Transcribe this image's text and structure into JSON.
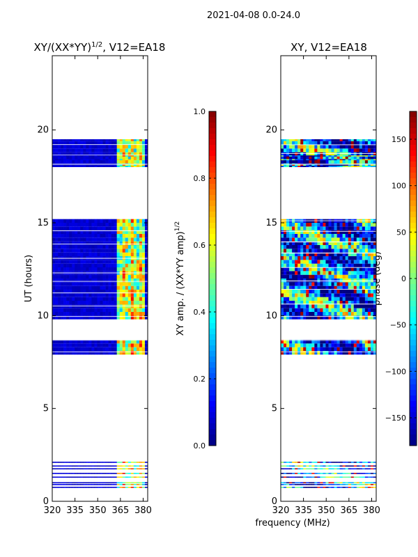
{
  "suptitle": "2021-04-08 0.0-24.0",
  "shared_xlabel": "frequency (MHz)",
  "colormap": [
    "#00007f",
    "#0000ff",
    "#007fff",
    "#00ffff",
    "#7fff7f",
    "#ffff00",
    "#ff7f00",
    "#ff0000",
    "#7f0000"
  ],
  "chart_data": [
    {
      "type": "heatmap",
      "title": "XY/(XX*YY)",
      "title_exponent": "1/2",
      "title_suffix": ", V12=EA18",
      "xlabel": "",
      "ylabel": "UT (hours)",
      "xlim": [
        320,
        383
      ],
      "ylim": [
        0,
        24
      ],
      "xticks": [
        320,
        335,
        350,
        365,
        380
      ],
      "yticks": [
        0,
        5,
        10,
        15,
        20
      ],
      "colorbar": {
        "label": "XY amp. / (XX*YY amp)",
        "label_exponent": "1/2",
        "range": [
          0.0,
          1.0
        ],
        "ticks": [
          "0.0",
          "0.2",
          "0.4",
          "0.6",
          "0.8",
          "1.0"
        ]
      },
      "rfi_band_mhz": [
        363,
        382
      ],
      "data_blocks_hours": [
        [
          7.9,
          8.7
        ],
        [
          9.8,
          15.2
        ],
        [
          18.0,
          19.5
        ]
      ],
      "scan_lines_hours": [
        0.75,
        0.9,
        1.0,
        1.3,
        1.5,
        1.75,
        1.9,
        2.1,
        18.1,
        18.4,
        18.6
      ],
      "background_value": 0.05,
      "band_value": 0.55
    },
    {
      "type": "heatmap",
      "title": "XY, V12=EA18",
      "xlabel": "frequency (MHz)",
      "ylabel": "",
      "xlim": [
        320,
        383
      ],
      "ylim": [
        0,
        24
      ],
      "xticks": [
        320,
        335,
        350,
        365,
        380
      ],
      "yticks": [
        0,
        5,
        10,
        15,
        20
      ],
      "colorbar": {
        "label": "phase (deg)",
        "range": [
          -180,
          180
        ],
        "ticks": [
          "150",
          "100",
          "50",
          "0",
          "−50",
          "−100",
          "−150"
        ],
        "tick_values": [
          150,
          100,
          50,
          0,
          -50,
          -100,
          -150
        ]
      },
      "data_blocks_hours": [
        [
          7.9,
          8.7
        ],
        [
          9.8,
          15.2
        ],
        [
          18.0,
          19.5
        ]
      ],
      "scan_lines_hours": [
        0.75,
        0.9,
        1.0,
        1.3,
        1.5,
        1.75,
        1.9,
        2.1,
        18.1,
        18.4,
        18.6
      ]
    }
  ]
}
